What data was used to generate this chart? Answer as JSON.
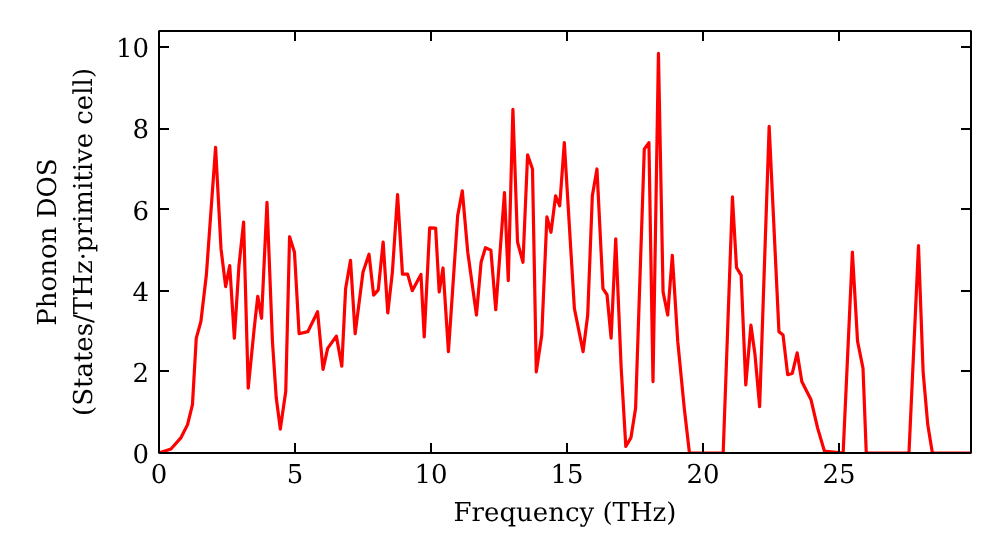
{
  "chart_data": {
    "type": "line",
    "xlabel": "Frequency (THz)",
    "ylabel": "Phonon DOS\n(States/THz·primitive cell)",
    "xlim": [
      0,
      29.85
    ],
    "ylim": [
      0,
      10.4
    ],
    "xticks": [
      0,
      5,
      10,
      15,
      20,
      25
    ],
    "yticks": [
      0,
      2,
      4,
      6,
      8,
      10
    ],
    "grid": false,
    "marker": "none",
    "line_style": "solid",
    "series": [
      {
        "color": "#ff0000",
        "x": [
          0,
          0.44,
          0.81,
          1.05,
          1.23,
          1.37,
          1.54,
          1.74,
          2.08,
          2.28,
          2.45,
          2.6,
          2.77,
          2.94,
          3.11,
          3.28,
          3.5,
          3.63,
          3.77,
          3.97,
          4.17,
          4.31,
          4.46,
          4.66,
          4.8,
          4.98,
          5.15,
          5.47,
          5.83,
          6.03,
          6.2,
          6.52,
          6.72,
          6.86,
          7.04,
          7.21,
          7.5,
          7.72,
          7.89,
          8.06,
          8.24,
          8.41,
          8.58,
          8.77,
          8.95,
          9.14,
          9.31,
          9.63,
          9.75,
          9.95,
          10.17,
          10.3,
          10.44,
          10.64,
          10.98,
          11.15,
          11.35,
          11.67,
          11.84,
          12.0,
          12.2,
          12.38,
          12.7,
          12.84,
          13.01,
          13.18,
          13.38,
          13.55,
          13.73,
          13.87,
          14.07,
          14.26,
          14.41,
          14.58,
          14.73,
          14.9,
          15.27,
          15.59,
          15.76,
          15.93,
          16.1,
          16.32,
          16.47,
          16.62,
          16.79,
          16.99,
          17.16,
          17.35,
          17.52,
          17.84,
          18.01,
          18.16,
          18.36,
          18.53,
          18.7,
          18.87,
          19.07,
          19.31,
          19.5,
          20.74,
          21.08,
          21.23,
          21.4,
          21.57,
          21.76,
          21.91,
          22.08,
          22.43,
          22.79,
          22.94,
          23.11,
          23.28,
          23.46,
          23.63,
          23.97,
          24.21,
          24.46,
          25.15,
          25.49,
          25.68,
          25.88,
          26.0,
          27.57,
          27.92,
          28.09,
          28.26,
          28.43,
          29.85
        ],
        "values": [
          0,
          0.1,
          0.38,
          0.7,
          1.19,
          2.83,
          3.24,
          4.38,
          7.53,
          5.03,
          4.1,
          4.62,
          2.83,
          4.62,
          5.69,
          1.6,
          3.07,
          3.86,
          3.32,
          6.18,
          2.75,
          1.36,
          0.59,
          1.52,
          5.33,
          4.95,
          2.94,
          2.99,
          3.48,
          2.06,
          2.58,
          2.88,
          2.14,
          4.05,
          4.75,
          2.94,
          4.46,
          4.9,
          3.89,
          4.02,
          5.2,
          3.45,
          4.46,
          6.37,
          4.41,
          4.41,
          4.0,
          4.4,
          2.86,
          5.55,
          5.54,
          3.97,
          4.56,
          2.5,
          5.85,
          6.46,
          4.95,
          3.4,
          4.7,
          5.06,
          5.0,
          3.53,
          6.42,
          4.25,
          8.47,
          5.2,
          4.7,
          7.35,
          7.0,
          2.0,
          2.9,
          5.82,
          5.44,
          6.34,
          6.09,
          7.65,
          3.56,
          2.5,
          3.4,
          6.34,
          7.0,
          4.05,
          3.9,
          2.83,
          5.28,
          2.1,
          0.16,
          0.38,
          1.1,
          7.49,
          7.65,
          1.76,
          9.85,
          3.97,
          3.4,
          4.87,
          2.75,
          1.1,
          0,
          0,
          6.31,
          4.57,
          4.38,
          1.68,
          3.15,
          2.42,
          1.14,
          8.05,
          2.99,
          2.91,
          1.93,
          1.96,
          2.47,
          1.76,
          1.31,
          0.62,
          0.05,
          0,
          4.95,
          2.75,
          2.09,
          0,
          0,
          5.11,
          2.0,
          0.7,
          0,
          0
        ]
      }
    ]
  }
}
